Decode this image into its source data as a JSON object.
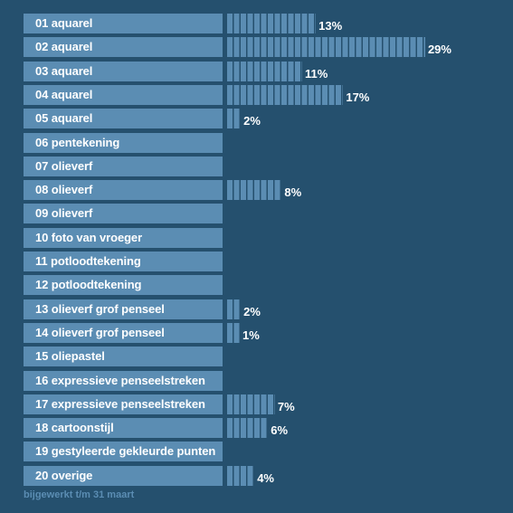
{
  "chart_data": {
    "type": "bar",
    "orientation": "horizontal",
    "categories": [
      "01 aquarel",
      "02 aquarel",
      "03 aquarel",
      "04 aquarel",
      "05  aquarel",
      "06 pentekening",
      "07 olieverf",
      "08 olieverf",
      "09 olieverf",
      "10 foto van vroeger",
      "11 potloodtekening",
      "12 potloodtekening",
      "13 olieverf grof penseel",
      "14 olieverf grof penseel",
      "15 oliepastel",
      "16 expressieve penseelstreken",
      "17 expressieve penseelstreken",
      "18 cartoonstijl",
      "19 gestyleerde gekleurde punten",
      "20 overige"
    ],
    "values": [
      13,
      29,
      11,
      17,
      2,
      0,
      0,
      8,
      0,
      0,
      0,
      0,
      2,
      1,
      0,
      0,
      7,
      6,
      0,
      4
    ],
    "value_labels": [
      "13%",
      "29%",
      "11%",
      "17%",
      "2%",
      "",
      "",
      "8%",
      "",
      "",
      "",
      "",
      "2%",
      "1%",
      "",
      "",
      "7%",
      "6%",
      "",
      "4%"
    ],
    "unit": "%",
    "xlim": [
      0,
      30
    ],
    "grid": false,
    "legend": "none"
  },
  "footnote": "bijgewerkt t/m 31 maart",
  "colors": {
    "background": "#25506e",
    "bar": "#5b8db3",
    "text": "#ffffff",
    "footnote": "#5b8db3"
  }
}
